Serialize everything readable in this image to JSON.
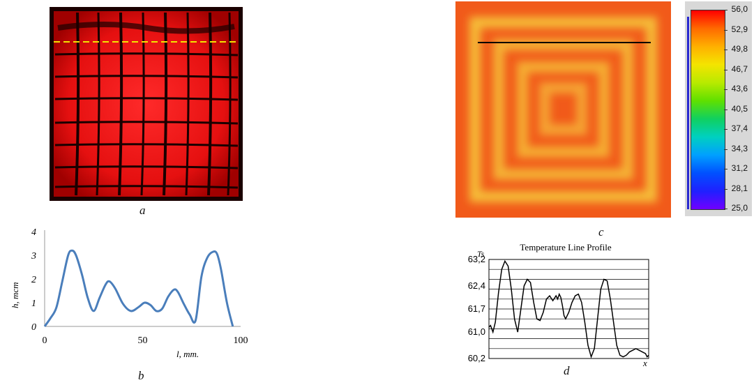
{
  "figure": {
    "panels": {
      "a": {
        "label": "a"
      },
      "b": {
        "label": "b"
      },
      "c": {
        "label": "c"
      },
      "d": {
        "label": "d"
      }
    },
    "colorbar": {
      "colors": [
        "#ff0000",
        "#ff6a00",
        "#ffb000",
        "#f4e400",
        "#b8ea00",
        "#5fe000",
        "#10d060",
        "#00d0c0",
        "#00a0ff",
        "#0050ff",
        "#2020ff",
        "#7000ff"
      ]
    }
  },
  "chart_data": [
    {
      "type": "line",
      "panel": "b",
      "xlabel": "l, mm.",
      "ylabel": "h, mcm",
      "xlim": [
        0,
        100
      ],
      "ylim": [
        0,
        4
      ],
      "x_ticks": [
        "0",
        "50",
        "100"
      ],
      "y_ticks": [
        "0",
        "1",
        "2",
        "3",
        "4"
      ],
      "series": [
        {
          "color": "#4a7ebb",
          "x": [
            0,
            3,
            6,
            9,
            12,
            14,
            16,
            19,
            22,
            25,
            28,
            31,
            33,
            36,
            40,
            44,
            48,
            51,
            54,
            57,
            60,
            63,
            66,
            68,
            71,
            74,
            77,
            80,
            83,
            86,
            88,
            90,
            93,
            96
          ],
          "y": [
            0.0,
            0.35,
            0.8,
            1.9,
            3.0,
            3.2,
            3.0,
            2.2,
            1.2,
            0.65,
            1.2,
            1.75,
            1.9,
            1.6,
            0.95,
            0.65,
            0.82,
            1.0,
            0.9,
            0.65,
            0.75,
            1.25,
            1.55,
            1.45,
            0.95,
            0.5,
            0.25,
            2.1,
            2.9,
            3.15,
            3.05,
            2.4,
            1.0,
            0.0
          ]
        }
      ]
    },
    {
      "type": "line",
      "panel": "d",
      "title": "Temperature Line Profile",
      "ylabel": "Ts",
      "xlabel": "x",
      "y_ticks": [
        "60,2",
        "61,0",
        "61,7",
        "62,4",
        "63,2"
      ],
      "ylim": [
        60.2,
        63.2
      ],
      "xlim": [
        0,
        100
      ],
      "series": [
        {
          "color": "#000000",
          "x": [
            0,
            1,
            2.5,
            4,
            6,
            8,
            10,
            12,
            14,
            16,
            18,
            20,
            22,
            24,
            26,
            28,
            30,
            32,
            34,
            36,
            38,
            40,
            42,
            43,
            44,
            45,
            46,
            47,
            48,
            50,
            52,
            54,
            56,
            58,
            60,
            62,
            64,
            66,
            68,
            70,
            72,
            74,
            76,
            78,
            80,
            82,
            84,
            86,
            88,
            90,
            92,
            94,
            96,
            98,
            99,
            100
          ],
          "y": [
            61.15,
            61.2,
            61.0,
            61.3,
            62.2,
            62.9,
            63.15,
            63.0,
            62.3,
            61.4,
            61.0,
            61.7,
            62.4,
            62.6,
            62.5,
            61.9,
            61.4,
            61.35,
            61.6,
            62.0,
            62.1,
            61.95,
            62.1,
            62.0,
            62.15,
            62.05,
            61.8,
            61.5,
            61.4,
            61.6,
            61.9,
            62.1,
            62.15,
            61.9,
            61.3,
            60.6,
            60.25,
            60.5,
            61.4,
            62.3,
            62.6,
            62.55,
            62.0,
            61.3,
            60.6,
            60.3,
            60.25,
            60.3,
            60.4,
            60.45,
            60.5,
            60.45,
            60.4,
            60.35,
            60.25,
            60.3
          ]
        }
      ]
    },
    {
      "type": "heatmap",
      "panel": "c",
      "colorbar_ticks": [
        "56,0",
        "52,9",
        "49,8",
        "46,7",
        "43,6",
        "40,5",
        "37,4",
        "34,3",
        "31,2",
        "28,1",
        "25,0"
      ],
      "zlim": [
        25.0,
        56.0
      ]
    }
  ]
}
